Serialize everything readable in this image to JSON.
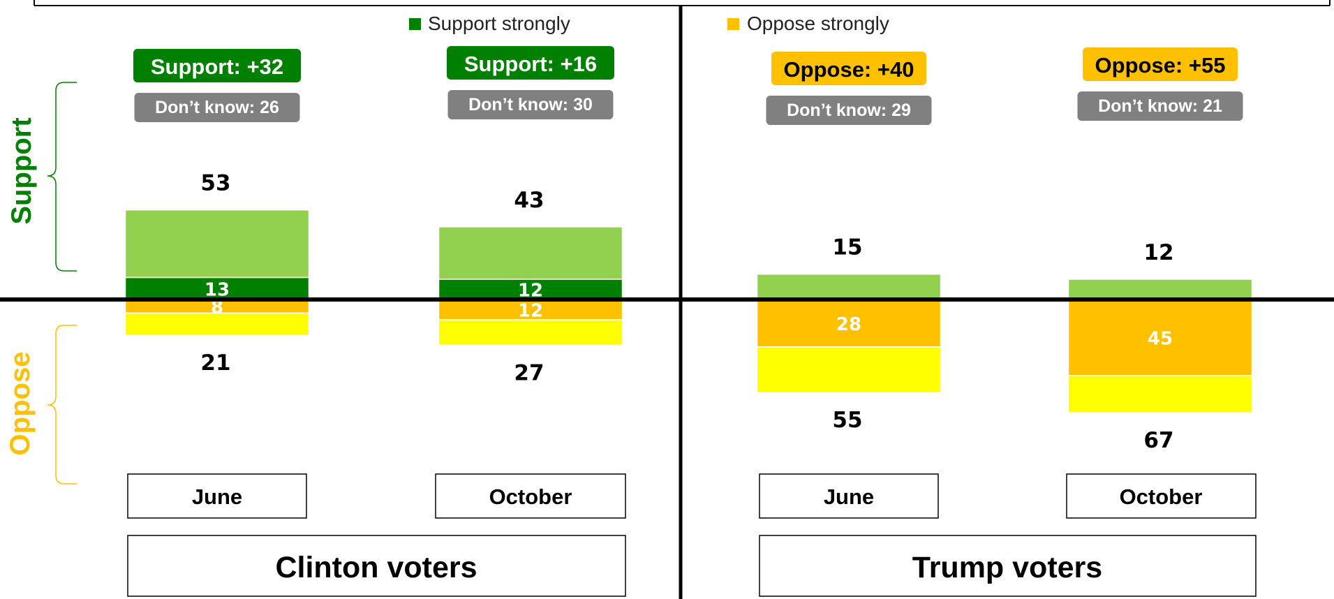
{
  "chart_data": {
    "type": "bar",
    "stacked": "diverging",
    "legend": [
      {
        "label": "Support strongly",
        "color": "#008000"
      },
      {
        "label": "Oppose strongly",
        "color": "#FFC000"
      }
    ],
    "axis_labels": {
      "support": "Support",
      "oppose": "Oppose"
    },
    "colors": {
      "support_other": "#92D050",
      "support_strongly": "#008000",
      "oppose_strongly": "#FFC000",
      "oppose_other": "#FFFF00",
      "dont_know": "#808080"
    },
    "groups": [
      {
        "name": "Clinton voters",
        "bars": [
          {
            "period": "June",
            "support_total": 53,
            "support_strongly": 13,
            "oppose_total": 21,
            "oppose_strongly": 8,
            "net_label": "Support: +32",
            "net_side": "support",
            "dont_know_label": "Don’t know: 26"
          },
          {
            "period": "October",
            "support_total": 43,
            "support_strongly": 12,
            "oppose_total": 27,
            "oppose_strongly": 12,
            "net_label": "Support: +16",
            "net_side": "support",
            "dont_know_label": "Don’t know: 30"
          }
        ]
      },
      {
        "name": "Trump voters",
        "bars": [
          {
            "period": "June",
            "support_total": 15,
            "support_strongly": 0,
            "oppose_total": 55,
            "oppose_strongly": 28,
            "net_label": "Oppose: +40",
            "net_side": "oppose",
            "dont_know_label": "Don’t know: 29"
          },
          {
            "period": "October",
            "support_total": 12,
            "support_strongly": 0,
            "oppose_total": 67,
            "oppose_strongly": 45,
            "net_label": "Oppose: +55",
            "net_side": "oppose",
            "dont_know_label": "Don’t know: 21"
          }
        ]
      }
    ]
  }
}
